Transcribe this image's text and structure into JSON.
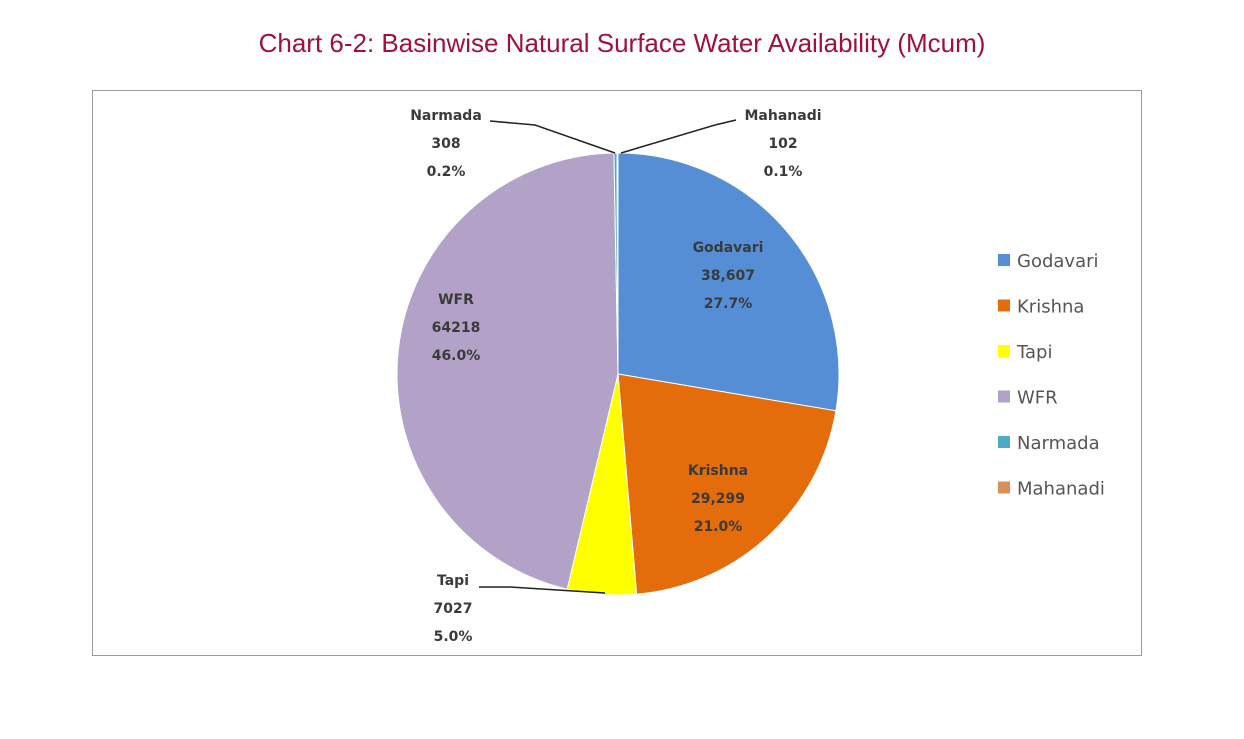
{
  "chart_data": {
    "type": "pie",
    "title": "Chart 6-2: Basinwise Natural Surface Water Availability (Mcum)",
    "legend_position": "right",
    "start": "top",
    "direction": "clockwise",
    "slices": [
      {
        "name": "Godavari",
        "value": 38607,
        "value_label": "38,607",
        "percent_label": "27.7%",
        "percent": 27.7,
        "color": "#558ED5"
      },
      {
        "name": "Krishna",
        "value": 29299,
        "value_label": "29,299",
        "percent_label": "21.0%",
        "percent": 21.0,
        "color": "#E46C0A"
      },
      {
        "name": "Tapi",
        "value": 7027,
        "value_label": "7027",
        "percent_label": "5.0%",
        "percent": 5.0,
        "color": "#FFFF00"
      },
      {
        "name": "WFR",
        "value": 64218,
        "value_label": "64218",
        "percent_label": "46.0%",
        "percent": 46.0,
        "color": "#B3A2C7"
      },
      {
        "name": "Narmada",
        "value": 308,
        "value_label": "308",
        "percent_label": "0.2%",
        "percent": 0.2,
        "color": "#4BACC6"
      },
      {
        "name": "Mahanadi",
        "value": 102,
        "value_label": "102",
        "percent_label": "0.1%",
        "percent": 0.1,
        "color": "#D99058"
      }
    ]
  }
}
